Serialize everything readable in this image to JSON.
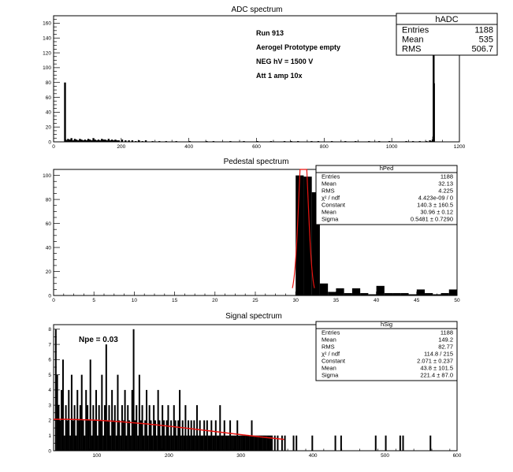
{
  "chart_data": [
    {
      "type": "bar",
      "title": "ADC spectrum",
      "xlim": [
        0,
        1200
      ],
      "ylim": [
        0,
        170
      ],
      "xticks": [
        0,
        200,
        400,
        600,
        800,
        1000,
        1200
      ],
      "yticks": [
        0,
        20,
        40,
        60,
        80,
        100,
        120,
        140,
        160
      ],
      "annotations": [
        "Run  913",
        "Aerogel Prototype empty",
        "NEG hV = 1500 V",
        "Att 1 amp 10x"
      ],
      "stats": {
        "name": "hADC",
        "rows": [
          [
            "Entries",
            "1188"
          ],
          [
            "Mean",
            "535"
          ],
          [
            "RMS",
            "506.7"
          ]
        ]
      },
      "bins": [
        [
          31,
          80
        ],
        [
          33,
          3
        ],
        [
          35,
          2
        ],
        [
          40,
          4
        ],
        [
          45,
          3
        ],
        [
          50,
          5
        ],
        [
          55,
          2
        ],
        [
          60,
          4
        ],
        [
          65,
          3
        ],
        [
          70,
          2
        ],
        [
          75,
          4
        ],
        [
          80,
          3
        ],
        [
          85,
          2
        ],
        [
          90,
          3
        ],
        [
          95,
          2
        ],
        [
          100,
          4
        ],
        [
          105,
          3
        ],
        [
          110,
          2
        ],
        [
          115,
          5
        ],
        [
          120,
          3
        ],
        [
          125,
          2
        ],
        [
          130,
          3
        ],
        [
          135,
          2
        ],
        [
          140,
          4
        ],
        [
          145,
          3
        ],
        [
          150,
          3
        ],
        [
          155,
          2
        ],
        [
          160,
          4
        ],
        [
          165,
          2
        ],
        [
          170,
          3
        ],
        [
          175,
          2
        ],
        [
          180,
          3
        ],
        [
          185,
          2
        ],
        [
          190,
          2
        ],
        [
          200,
          3
        ],
        [
          210,
          2
        ],
        [
          220,
          2
        ],
        [
          230,
          2
        ],
        [
          240,
          1
        ],
        [
          250,
          2
        ],
        [
          260,
          1
        ],
        [
          270,
          2
        ],
        [
          290,
          1
        ],
        [
          310,
          1
        ],
        [
          330,
          1
        ],
        [
          360,
          1
        ],
        [
          400,
          1
        ],
        [
          450,
          1
        ],
        [
          470,
          1
        ],
        [
          520,
          1
        ],
        [
          560,
          1
        ],
        [
          600,
          1
        ],
        [
          640,
          1
        ],
        [
          680,
          1
        ],
        [
          700,
          1
        ],
        [
          720,
          1
        ],
        [
          760,
          1
        ],
        [
          780,
          1
        ],
        [
          820,
          1
        ],
        [
          860,
          1
        ],
        [
          890,
          1
        ],
        [
          930,
          1
        ],
        [
          960,
          1
        ],
        [
          990,
          1
        ],
        [
          1040,
          1
        ],
        [
          1060,
          1
        ],
        [
          1080,
          1
        ],
        [
          1100,
          1
        ],
        [
          1110,
          2
        ],
        [
          1115,
          1
        ],
        [
          1118,
          3
        ],
        [
          1120,
          7
        ],
        [
          1121,
          123
        ],
        [
          1122,
          79
        ]
      ]
    },
    {
      "type": "bar",
      "title": "Pedestal spectrum",
      "xlim": [
        0,
        50
      ],
      "ylim": [
        0,
        105
      ],
      "xticks": [
        0,
        5,
        10,
        15,
        20,
        25,
        30,
        35,
        40,
        45,
        50
      ],
      "yticks": [
        0,
        20,
        40,
        60,
        80,
        100
      ],
      "stats": {
        "name": "hPed",
        "rows": [
          [
            "Entries",
            "1188"
          ],
          [
            "Mean",
            "32.13"
          ],
          [
            "RMS",
            "4.225"
          ],
          [
            "χ² / ndf",
            "4.423e-09 / 0"
          ],
          [
            "Constant",
            "140.3 ± 160.5"
          ],
          [
            "Mean",
            "30.96 ± 0.12"
          ],
          [
            "Sigma",
            "0.5481 ± 0.7290"
          ]
        ]
      },
      "bins": [
        [
          30,
          100
        ],
        [
          31,
          99
        ],
        [
          32,
          86
        ],
        [
          33,
          10
        ],
        [
          34,
          3
        ],
        [
          35,
          6
        ],
        [
          36,
          2
        ],
        [
          37,
          6
        ],
        [
          38,
          2
        ],
        [
          39,
          1
        ],
        [
          40,
          8
        ],
        [
          41,
          2
        ],
        [
          42,
          2
        ],
        [
          43,
          2
        ],
        [
          44,
          1
        ],
        [
          45,
          5
        ],
        [
          46,
          2
        ],
        [
          47,
          1
        ],
        [
          48,
          2
        ],
        [
          49,
          5
        ]
      ],
      "fit": {
        "type": "gauss",
        "constant": 140.3,
        "mean": 30.96,
        "sigma": 0.5481,
        "color": "#e8130f"
      }
    },
    {
      "type": "bar",
      "title": "Signal spectrum",
      "xlim": [
        40,
        600
      ],
      "ylim": [
        0,
        8.3
      ],
      "xticks": [
        100,
        200,
        300,
        400,
        500,
        600
      ],
      "yticks": [
        0,
        1,
        2,
        3,
        4,
        5,
        6,
        7,
        8
      ],
      "annotations": [
        "Npe = 0.03"
      ],
      "stats": {
        "name": "hSig",
        "rows": [
          [
            "Entries",
            "1188"
          ],
          [
            "Mean",
            "149.2"
          ],
          [
            "RMS",
            "82.77"
          ],
          [
            "χ² / ndf",
            "114.8 / 215"
          ],
          [
            "Constant",
            "2.071 ± 0.237"
          ],
          [
            "Mean",
            "43.8 ± 101.5"
          ],
          [
            "Sigma",
            "221.4 ± 87.0"
          ]
        ]
      },
      "bins": [
        [
          42,
          8
        ],
        [
          44,
          5
        ],
        [
          46,
          3
        ],
        [
          48,
          2
        ],
        [
          50,
          4
        ],
        [
          52,
          6
        ],
        [
          54,
          1
        ],
        [
          56,
          3
        ],
        [
          58,
          2
        ],
        [
          60,
          4
        ],
        [
          62,
          1
        ],
        [
          64,
          5
        ],
        [
          66,
          2
        ],
        [
          68,
          3
        ],
        [
          70,
          1
        ],
        [
          72,
          4
        ],
        [
          74,
          2
        ],
        [
          76,
          3
        ],
        [
          78,
          5
        ],
        [
          80,
          2
        ],
        [
          82,
          1
        ],
        [
          84,
          4
        ],
        [
          86,
          3
        ],
        [
          88,
          2
        ],
        [
          90,
          6
        ],
        [
          92,
          1
        ],
        [
          94,
          3
        ],
        [
          96,
          2
        ],
        [
          98,
          4
        ],
        [
          100,
          1
        ],
        [
          102,
          3
        ],
        [
          104,
          2
        ],
        [
          106,
          5
        ],
        [
          108,
          1
        ],
        [
          110,
          3
        ],
        [
          112,
          7
        ],
        [
          114,
          2
        ],
        [
          116,
          3
        ],
        [
          118,
          1
        ],
        [
          120,
          4
        ],
        [
          122,
          2
        ],
        [
          124,
          3
        ],
        [
          126,
          1
        ],
        [
          128,
          5
        ],
        [
          130,
          2
        ],
        [
          132,
          1
        ],
        [
          134,
          3
        ],
        [
          136,
          2
        ],
        [
          138,
          4
        ],
        [
          140,
          1
        ],
        [
          142,
          3
        ],
        [
          144,
          2
        ],
        [
          146,
          1
        ],
        [
          148,
          4
        ],
        [
          150,
          8
        ],
        [
          152,
          2
        ],
        [
          154,
          3
        ],
        [
          156,
          1
        ],
        [
          158,
          5
        ],
        [
          160,
          2
        ],
        [
          162,
          3
        ],
        [
          164,
          1
        ],
        [
          166,
          2
        ],
        [
          168,
          4
        ],
        [
          170,
          1
        ],
        [
          172,
          3
        ],
        [
          174,
          2
        ],
        [
          176,
          1
        ],
        [
          178,
          3
        ],
        [
          180,
          2
        ],
        [
          182,
          1
        ],
        [
          184,
          4
        ],
        [
          186,
          2
        ],
        [
          188,
          1
        ],
        [
          190,
          3
        ],
        [
          192,
          2
        ],
        [
          194,
          1
        ],
        [
          196,
          2
        ],
        [
          198,
          3
        ],
        [
          200,
          1
        ],
        [
          202,
          2
        ],
        [
          204,
          1
        ],
        [
          206,
          3
        ],
        [
          208,
          2
        ],
        [
          210,
          1
        ],
        [
          212,
          2
        ],
        [
          214,
          4
        ],
        [
          216,
          1
        ],
        [
          218,
          2
        ],
        [
          220,
          1
        ],
        [
          222,
          3
        ],
        [
          224,
          1
        ],
        [
          226,
          2
        ],
        [
          228,
          1
        ],
        [
          230,
          2
        ],
        [
          232,
          1
        ],
        [
          234,
          2
        ],
        [
          236,
          1
        ],
        [
          238,
          3
        ],
        [
          240,
          1
        ],
        [
          242,
          2
        ],
        [
          244,
          1
        ],
        [
          246,
          1
        ],
        [
          248,
          2
        ],
        [
          250,
          1
        ],
        [
          252,
          2
        ],
        [
          254,
          1
        ],
        [
          256,
          1
        ],
        [
          258,
          2
        ],
        [
          260,
          1
        ],
        [
          262,
          1
        ],
        [
          264,
          2
        ],
        [
          266,
          1
        ],
        [
          268,
          1
        ],
        [
          270,
          3
        ],
        [
          272,
          1
        ],
        [
          274,
          1
        ],
        [
          276,
          2
        ],
        [
          278,
          1
        ],
        [
          280,
          1
        ],
        [
          282,
          1
        ],
        [
          284,
          2
        ],
        [
          286,
          1
        ],
        [
          288,
          1
        ],
        [
          290,
          1
        ],
        [
          292,
          1
        ],
        [
          294,
          2
        ],
        [
          296,
          1
        ],
        [
          298,
          1
        ],
        [
          300,
          1
        ],
        [
          302,
          1
        ],
        [
          304,
          1
        ],
        [
          306,
          1
        ],
        [
          308,
          1
        ],
        [
          310,
          1
        ],
        [
          312,
          1
        ],
        [
          314,
          2
        ],
        [
          316,
          1
        ],
        [
          318,
          1
        ],
        [
          320,
          1
        ],
        [
          322,
          1
        ],
        [
          324,
          1
        ],
        [
          326,
          1
        ],
        [
          328,
          1
        ],
        [
          330,
          1
        ],
        [
          332,
          1
        ],
        [
          334,
          1
        ],
        [
          336,
          1
        ],
        [
          338,
          1
        ],
        [
          340,
          1
        ],
        [
          342,
          1
        ],
        [
          346,
          1
        ],
        [
          350,
          1
        ],
        [
          356,
          1
        ],
        [
          360,
          1
        ],
        [
          372,
          1
        ],
        [
          376,
          1
        ],
        [
          398,
          1
        ],
        [
          430,
          1
        ],
        [
          438,
          1
        ],
        [
          486,
          1
        ],
        [
          500,
          1
        ],
        [
          520,
          1
        ],
        [
          524,
          1
        ],
        [
          562,
          1
        ]
      ],
      "fit": {
        "type": "gauss",
        "constant": 2.071,
        "mean": 43.8,
        "sigma": 221.4,
        "range": [
          40,
          360
        ],
        "color": "#e8130f"
      }
    }
  ]
}
